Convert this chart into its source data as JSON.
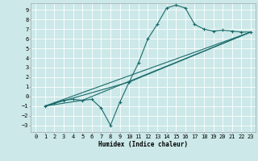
{
  "background_color": "#cce8e8",
  "grid_color": "#ffffff",
  "line_color": "#1a6b6b",
  "xlabel": "Humidex (Indice chaleur)",
  "xlim": [
    -0.5,
    23.5
  ],
  "ylim": [
    -3.7,
    9.7
  ],
  "xticks": [
    0,
    1,
    2,
    3,
    4,
    5,
    6,
    7,
    8,
    9,
    10,
    11,
    12,
    13,
    14,
    15,
    16,
    17,
    18,
    19,
    20,
    21,
    22,
    23
  ],
  "yticks": [
    -3,
    -2,
    -1,
    0,
    1,
    2,
    3,
    4,
    5,
    6,
    7,
    8,
    9
  ],
  "series1_x": [
    1,
    2,
    3,
    4,
    5,
    6,
    7,
    8,
    9,
    10,
    11,
    12,
    13,
    14,
    15,
    16,
    17,
    18,
    19,
    20,
    21,
    22,
    23
  ],
  "series1_y": [
    -1.0,
    -0.7,
    -0.4,
    -0.3,
    -0.4,
    -0.3,
    -1.2,
    -3.0,
    -0.6,
    1.5,
    3.5,
    6.0,
    7.5,
    9.2,
    9.5,
    9.2,
    7.5,
    7.0,
    6.8,
    6.9,
    6.8,
    6.7,
    6.7
  ],
  "series2_x": [
    1,
    23
  ],
  "series2_y": [
    -1.0,
    6.7
  ],
  "series3_x": [
    1,
    5,
    23
  ],
  "series3_y": [
    -1.0,
    -0.4,
    6.7
  ],
  "series4_x": [
    1,
    10,
    23
  ],
  "series4_y": [
    -1.0,
    1.5,
    6.7
  ],
  "tick_fontsize": 5.0,
  "xlabel_fontsize": 5.5,
  "marker_size": 2.0,
  "line_width": 0.8
}
